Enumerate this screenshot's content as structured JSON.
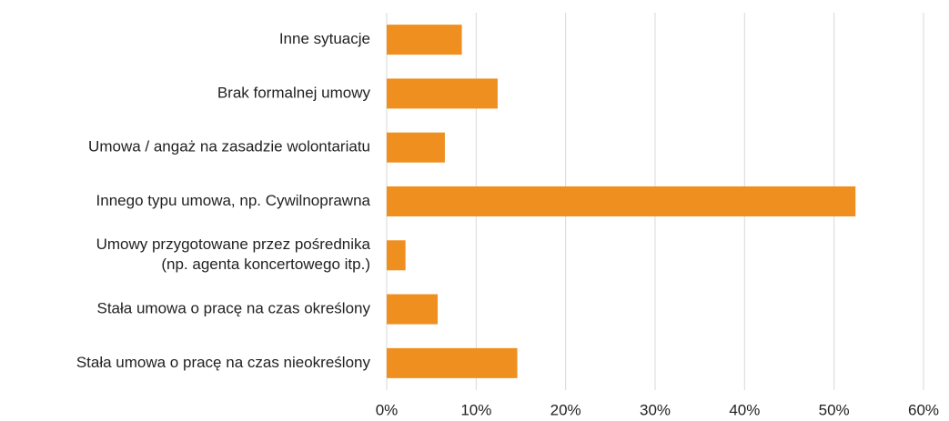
{
  "chart_data": {
    "type": "barh",
    "categories": [
      "Inne sytuacje",
      "Brak formalnej umowy",
      "Umowa / angaż na zasadzie wolontariatu",
      "Innego typu umowa, np. Cywilnoprawna",
      "Umowy przygotowane przez pośrednika\n(np. agenta koncertowego itp.)",
      "Stała umowa o pracę na czas określony",
      "Stała umowa o pracę na czas nieokreślony"
    ],
    "values": [
      8.4,
      12.4,
      6.5,
      52.4,
      2.1,
      5.7,
      14.6
    ],
    "color": "#ef8f1f",
    "xlim": [
      0,
      60
    ],
    "xticks": [
      {
        "value": 0,
        "label": "0%"
      },
      {
        "value": 10,
        "label": "10%"
      },
      {
        "value": 20,
        "label": "20%"
      },
      {
        "value": 30,
        "label": "30%"
      },
      {
        "value": 40,
        "label": "40%"
      },
      {
        "value": 50,
        "label": "50%"
      },
      {
        "value": 60,
        "label": "60%"
      }
    ],
    "grid": true
  }
}
